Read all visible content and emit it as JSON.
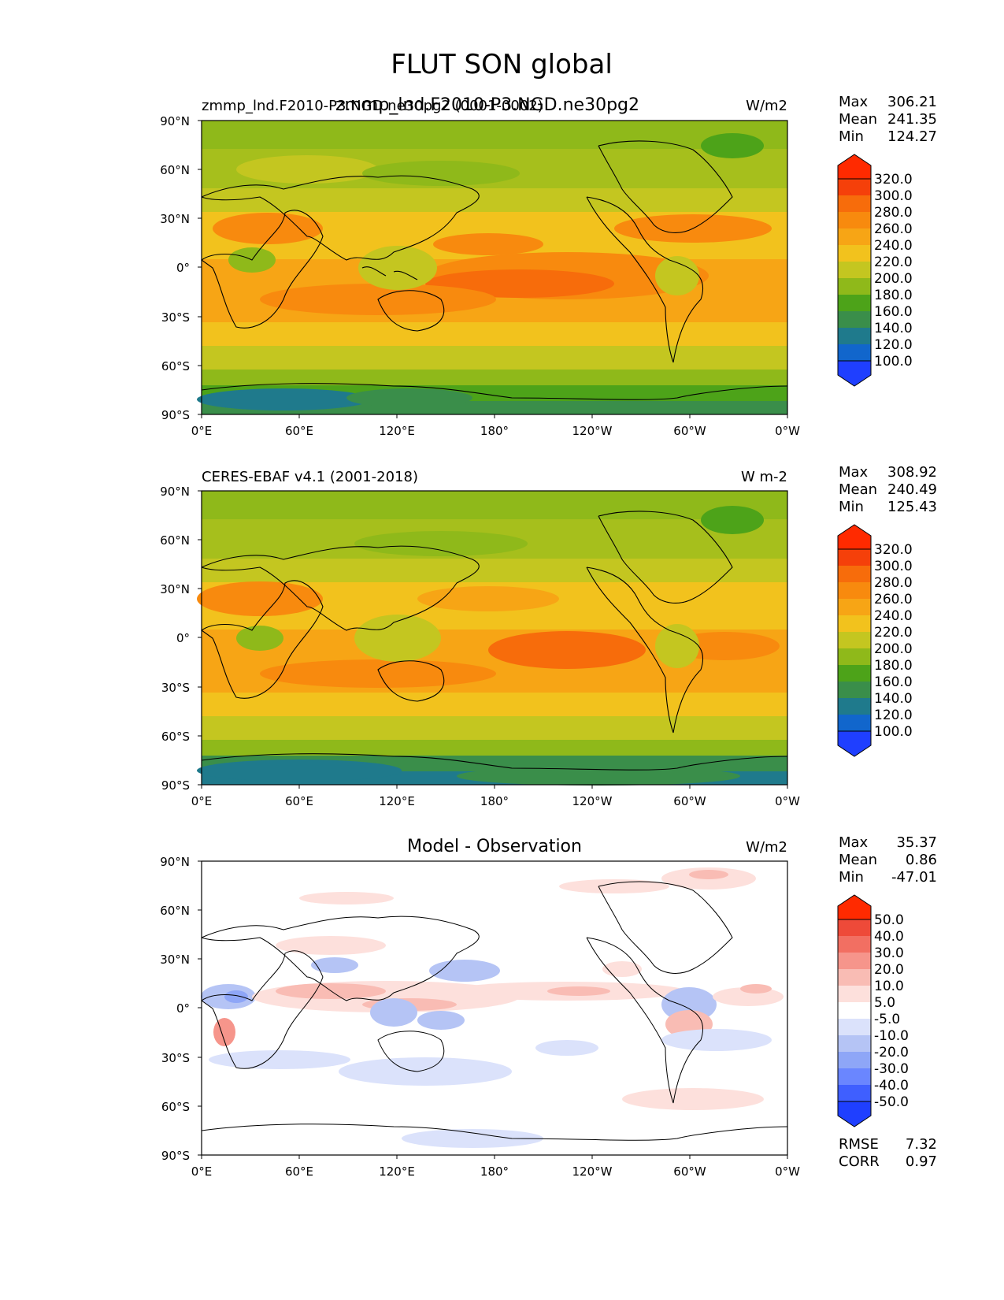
{
  "figure": {
    "title": "FLUT SON global"
  },
  "axis_ticks": {
    "lat": [
      "90°N",
      "60°N",
      "30°N",
      "0°",
      "30°S",
      "60°S",
      "90°S"
    ],
    "lon": [
      "0°E",
      "60°E",
      "120°E",
      "180°",
      "120°W",
      "60°W",
      "0°W"
    ]
  },
  "colors": {
    "abs_levels": [
      "#1f3fff",
      "#1166cc",
      "#1f7a8c",
      "#3a8e4a",
      "#4da319",
      "#8fb91a",
      "#c4c620",
      "#f2c21d",
      "#f7a515",
      "#f88a0e",
      "#f76c0b",
      "#f5400a",
      "#ff2a00"
    ],
    "diff_levels": [
      "#1f3fff",
      "#3f5fff",
      "#6a86ff",
      "#8ea6f7",
      "#b5c4f5",
      "#dbe2fb",
      "#ffffff",
      "#fde0dc",
      "#f9bcb4",
      "#f6958b",
      "#f26f62",
      "#ee4a39",
      "#ff2a00"
    ]
  },
  "panels": [
    {
      "title_left": "zmmp_lnd.F2010-P3.NGD.ne30pg2 (0001-0002)",
      "title_center": "zmmp_lnd.F2010-P3.NGD.ne30pg2",
      "units": "W/m2",
      "stats": [
        {
          "label": "Max",
          "value": "306.21"
        },
        {
          "label": "Mean",
          "value": "241.35"
        },
        {
          "label": "Min",
          "value": "124.27"
        }
      ],
      "colorbar_labels": [
        "320.0",
        "300.0",
        "280.0",
        "260.0",
        "240.0",
        "220.0",
        "200.0",
        "180.0",
        "160.0",
        "140.0",
        "120.0",
        "100.0"
      ]
    },
    {
      "title_left": "CERES-EBAF v4.1 (2001-2018)",
      "title_center": "",
      "units": "W m-2",
      "stats": [
        {
          "label": "Max",
          "value": "308.92"
        },
        {
          "label": "Mean",
          "value": "240.49"
        },
        {
          "label": "Min",
          "value": "125.43"
        }
      ],
      "colorbar_labels": [
        "320.0",
        "300.0",
        "280.0",
        "260.0",
        "240.0",
        "220.0",
        "200.0",
        "180.0",
        "160.0",
        "140.0",
        "120.0",
        "100.0"
      ]
    },
    {
      "title_left": "",
      "title_center": "Model - Observation",
      "units": "W/m2",
      "stats": [
        {
          "label": "Max",
          "value": "35.37"
        },
        {
          "label": "Mean",
          "value": "0.86"
        },
        {
          "label": "Min",
          "value": "-47.01"
        }
      ],
      "colorbar_labels": [
        "50.0",
        "40.0",
        "30.0",
        "20.0",
        "10.0",
        "5.0",
        "-5.0",
        "-10.0",
        "-20.0",
        "-30.0",
        "-40.0",
        "-50.0"
      ],
      "extra_stats": [
        {
          "label": "RMSE",
          "value": "7.32"
        },
        {
          "label": "CORR",
          "value": "0.97"
        }
      ]
    }
  ],
  "chart_data": [
    {
      "type": "heatmap",
      "title": "zmmp_lnd.F2010-P3.NGD.ne30pg2",
      "variable": "FLUT",
      "season": "SON",
      "units": "W/m2",
      "xlim": [
        0,
        360
      ],
      "ylim": [
        -90,
        90
      ],
      "contour_levels": [
        100,
        120,
        140,
        160,
        180,
        200,
        220,
        240,
        260,
        280,
        300,
        320
      ],
      "max": 306.21,
      "mean": 241.35,
      "min": 124.27
    },
    {
      "type": "heatmap",
      "title": "CERES-EBAF v4.1 (2001-2018)",
      "variable": "FLUT",
      "season": "SON",
      "units": "W m-2",
      "xlim": [
        0,
        360
      ],
      "ylim": [
        -90,
        90
      ],
      "contour_levels": [
        100,
        120,
        140,
        160,
        180,
        200,
        220,
        240,
        260,
        280,
        300,
        320
      ],
      "max": 308.92,
      "mean": 240.49,
      "min": 125.43
    },
    {
      "type": "heatmap",
      "title": "Model - Observation",
      "variable": "FLUT",
      "season": "SON",
      "units": "W/m2",
      "xlim": [
        0,
        360
      ],
      "ylim": [
        -90,
        90
      ],
      "contour_levels": [
        -50,
        -40,
        -30,
        -20,
        -10,
        -5,
        5,
        10,
        20,
        30,
        40,
        50
      ],
      "max": 35.37,
      "mean": 0.86,
      "min": -47.01,
      "rmse": 7.32,
      "corr": 0.97
    }
  ]
}
